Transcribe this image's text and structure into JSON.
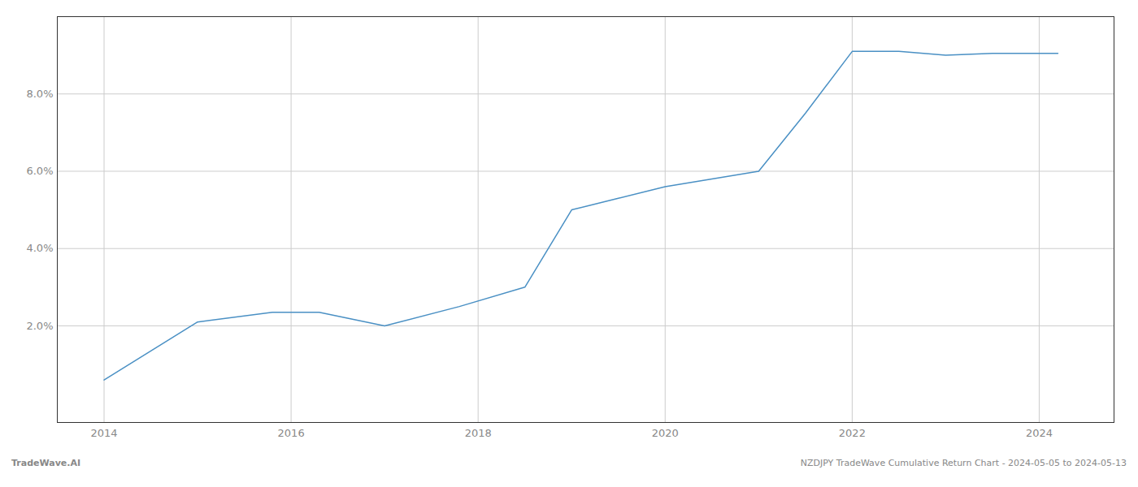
{
  "chart_data": {
    "type": "line",
    "x": [
      2014.0,
      2015.0,
      2015.8,
      2016.3,
      2017.0,
      2017.8,
      2018.5,
      2019.0,
      2019.5,
      2020.0,
      2020.5,
      2021.0,
      2021.5,
      2022.0,
      2022.5,
      2023.0,
      2023.5,
      2024.2
    ],
    "values": [
      0.006,
      0.021,
      0.0235,
      0.0235,
      0.02,
      0.025,
      0.03,
      0.05,
      0.053,
      0.056,
      0.058,
      0.06,
      0.075,
      0.091,
      0.091,
      0.09,
      0.0905,
      0.0905
    ],
    "color": "#4a90c4",
    "xlim": [
      2013.5,
      2024.8
    ],
    "ylim": [
      -0.005,
      0.1
    ],
    "xticks": [
      2014,
      2016,
      2018,
      2020,
      2022,
      2024
    ],
    "yticks": [
      {
        "value": 0.02,
        "label": "2.0%"
      },
      {
        "value": 0.04,
        "label": "4.0%"
      },
      {
        "value": 0.06,
        "label": "6.0%"
      },
      {
        "value": 0.08,
        "label": "8.0%"
      }
    ],
    "grid": true,
    "annotations": [
      "TradeWave.AI",
      "NZDJPY TradeWave Cumulative Return Chart - 2024-05-05 to 2024-05-13"
    ]
  }
}
